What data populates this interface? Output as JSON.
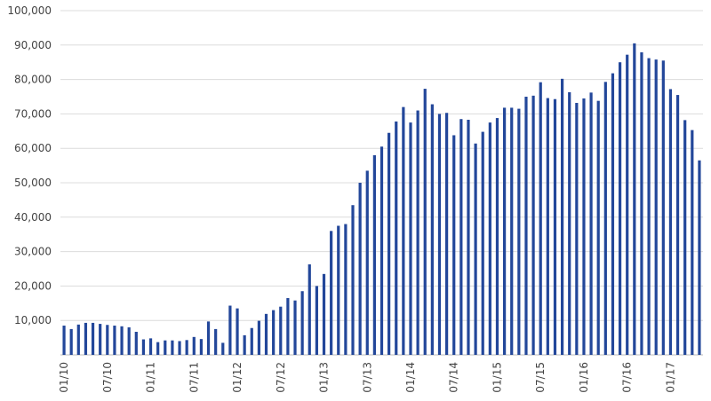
{
  "chart_data": {
    "type": "bar",
    "categories": [
      "01/10",
      null,
      null,
      null,
      null,
      null,
      "07/10",
      null,
      null,
      null,
      null,
      null,
      "01/11",
      null,
      null,
      null,
      null,
      null,
      "07/11",
      null,
      null,
      null,
      null,
      null,
      "01/12",
      null,
      null,
      null,
      null,
      null,
      "07/12",
      null,
      null,
      null,
      null,
      null,
      "01/13",
      null,
      null,
      null,
      null,
      null,
      "07/13",
      null,
      null,
      null,
      null,
      null,
      "01/14",
      null,
      null,
      null,
      null,
      null,
      "07/14",
      null,
      null,
      null,
      null,
      null,
      "01/15",
      null,
      null,
      null,
      null,
      null,
      "07/15",
      null,
      null,
      null,
      null,
      null,
      "01/16",
      null,
      null,
      null,
      null,
      null,
      "07/16",
      null,
      null,
      null,
      null,
      null,
      "01/17",
      null,
      null,
      null,
      null
    ],
    "values": [
      8500,
      7500,
      8800,
      9300,
      9300,
      9000,
      8700,
      8500,
      8300,
      8000,
      6700,
      4500,
      4800,
      3700,
      4200,
      4200,
      4000,
      4300,
      5200,
      4600,
      9700,
      7500,
      3500,
      14300,
      13500,
      5700,
      7800,
      9900,
      11900,
      13000,
      14000,
      16500,
      15800,
      18500,
      26300,
      20000,
      23500,
      36000,
      37500,
      38000,
      43500,
      50000,
      53500,
      58000,
      60500,
      64500,
      67800,
      72000,
      67500,
      71000,
      77300,
      72800,
      70000,
      70300,
      63800,
      68500,
      68300,
      61400,
      64800,
      67500,
      68800,
      71800,
      71800,
      71500,
      75000,
      75300,
      79200,
      74600,
      74300,
      80200,
      76300,
      73200,
      74500,
      76200,
      73800,
      79300,
      81800,
      85000,
      87200,
      90500,
      87900,
      86200,
      85800,
      85500,
      77200,
      75500,
      68200,
      65300,
      56500
    ],
    "color": "#23479a",
    "ylim": [
      0,
      100000
    ],
    "yticks": [
      {
        "value": 10000,
        "label": "10,000"
      },
      {
        "value": 20000,
        "label": "20,000"
      },
      {
        "value": 30000,
        "label": "30,000"
      },
      {
        "value": 40000,
        "label": "40,000"
      },
      {
        "value": 50000,
        "label": "50,000"
      },
      {
        "value": 60000,
        "label": "60,000"
      },
      {
        "value": 70000,
        "label": "70,000"
      },
      {
        "value": 80000,
        "label": "80,000"
      },
      {
        "value": 90000,
        "label": "90,000"
      },
      {
        "value": 100000,
        "label": "100,000"
      }
    ],
    "grid": true
  }
}
